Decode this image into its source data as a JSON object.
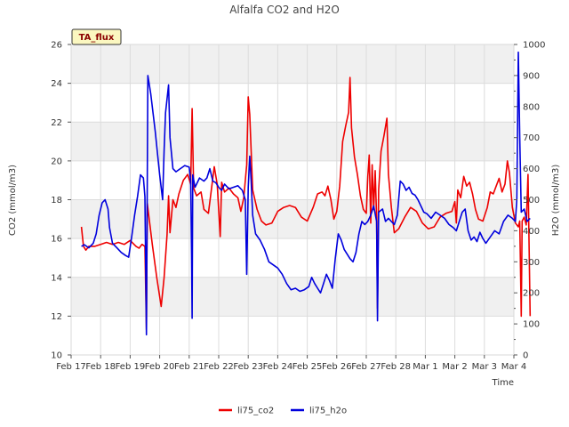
{
  "chart_data": {
    "type": "line",
    "title": "Alfalfa CO2 and H2O",
    "badge": "TA_flux",
    "xlabel": "Time",
    "ylabel_left": "CO2 (mmol/m3)",
    "ylabel_right": "H2O (mmol/m3)",
    "ylim_left": [
      10,
      26
    ],
    "ylim_right": [
      0,
      1000
    ],
    "xlim": [
      0,
      15
    ],
    "left_ticks": [
      10,
      12,
      14,
      16,
      18,
      20,
      22,
      24,
      26
    ],
    "right_ticks": [
      0,
      100,
      200,
      300,
      400,
      500,
      600,
      700,
      800,
      900,
      1000
    ],
    "x_tick_labels": [
      "Feb 17",
      "Feb 18",
      "Feb 19",
      "Feb 20",
      "Feb 21",
      "Feb 22",
      "Feb 23",
      "Feb 24",
      "Feb 25",
      "Feb 26",
      "Feb 27",
      "Feb 28",
      "Mar 1",
      "Mar 2",
      "Mar 3",
      "Mar 4"
    ],
    "grid": true,
    "legend_position": "bottom-center",
    "series": [
      {
        "name": "li75_co2",
        "axis": "left",
        "color": "#ee0000",
        "points": [
          [
            0.35,
            16.6
          ],
          [
            0.42,
            15.6
          ],
          [
            0.5,
            15.4
          ],
          [
            0.6,
            15.6
          ],
          [
            0.8,
            15.6
          ],
          [
            1.0,
            15.7
          ],
          [
            1.2,
            15.8
          ],
          [
            1.4,
            15.7
          ],
          [
            1.6,
            15.8
          ],
          [
            1.8,
            15.7
          ],
          [
            2.0,
            15.9
          ],
          [
            2.2,
            15.6
          ],
          [
            2.3,
            15.5
          ],
          [
            2.4,
            15.7
          ],
          [
            2.5,
            15.6
          ],
          [
            2.55,
            11.3
          ],
          [
            2.58,
            17.8
          ],
          [
            2.75,
            15.7
          ],
          [
            2.9,
            14.0
          ],
          [
            3.05,
            12.5
          ],
          [
            3.15,
            14.0
          ],
          [
            3.25,
            16.2
          ],
          [
            3.3,
            18.2
          ],
          [
            3.35,
            16.3
          ],
          [
            3.45,
            18.0
          ],
          [
            3.55,
            17.6
          ],
          [
            3.65,
            18.3
          ],
          [
            3.8,
            19.0
          ],
          [
            3.95,
            19.3
          ],
          [
            4.05,
            18.8
          ],
          [
            4.1,
            22.7
          ],
          [
            4.15,
            18.6
          ],
          [
            4.25,
            18.2
          ],
          [
            4.4,
            18.4
          ],
          [
            4.5,
            17.5
          ],
          [
            4.65,
            17.3
          ],
          [
            4.75,
            18.5
          ],
          [
            4.85,
            19.7
          ],
          [
            4.95,
            18.8
          ],
          [
            5.05,
            16.1
          ],
          [
            5.1,
            18.9
          ],
          [
            5.2,
            18.4
          ],
          [
            5.35,
            18.6
          ],
          [
            5.5,
            18.3
          ],
          [
            5.65,
            18.1
          ],
          [
            5.75,
            17.4
          ],
          [
            5.85,
            18.1
          ],
          [
            5.95,
            19.8
          ],
          [
            6.0,
            23.3
          ],
          [
            6.05,
            22.4
          ],
          [
            6.15,
            18.5
          ],
          [
            6.3,
            17.5
          ],
          [
            6.45,
            16.9
          ],
          [
            6.6,
            16.7
          ],
          [
            6.8,
            16.8
          ],
          [
            7.0,
            17.4
          ],
          [
            7.2,
            17.6
          ],
          [
            7.4,
            17.7
          ],
          [
            7.6,
            17.6
          ],
          [
            7.8,
            17.1
          ],
          [
            8.0,
            16.9
          ],
          [
            8.2,
            17.6
          ],
          [
            8.35,
            18.3
          ],
          [
            8.5,
            18.4
          ],
          [
            8.6,
            18.2
          ],
          [
            8.7,
            18.7
          ],
          [
            8.8,
            18.0
          ],
          [
            8.9,
            17.0
          ],
          [
            9.0,
            17.4
          ],
          [
            9.1,
            18.7
          ],
          [
            9.2,
            21.0
          ],
          [
            9.3,
            21.8
          ],
          [
            9.4,
            22.5
          ],
          [
            9.45,
            24.3
          ],
          [
            9.5,
            21.7
          ],
          [
            9.6,
            20.2
          ],
          [
            9.7,
            19.3
          ],
          [
            9.8,
            18.2
          ],
          [
            9.9,
            17.5
          ],
          [
            10.0,
            17.3
          ],
          [
            10.05,
            19.2
          ],
          [
            10.1,
            20.3
          ],
          [
            10.15,
            16.8
          ],
          [
            10.2,
            19.8
          ],
          [
            10.25,
            17.5
          ],
          [
            10.3,
            19.5
          ],
          [
            10.35,
            17.1
          ],
          [
            10.38,
            12.4
          ],
          [
            10.42,
            18.5
          ],
          [
            10.5,
            20.5
          ],
          [
            10.6,
            21.3
          ],
          [
            10.7,
            22.2
          ],
          [
            10.75,
            19.3
          ],
          [
            10.85,
            17.6
          ],
          [
            10.95,
            16.3
          ],
          [
            11.1,
            16.5
          ],
          [
            11.3,
            17.1
          ],
          [
            11.5,
            17.6
          ],
          [
            11.7,
            17.4
          ],
          [
            11.9,
            16.8
          ],
          [
            12.1,
            16.5
          ],
          [
            12.3,
            16.6
          ],
          [
            12.5,
            17.1
          ],
          [
            12.7,
            17.3
          ],
          [
            12.9,
            17.4
          ],
          [
            13.0,
            17.9
          ],
          [
            13.05,
            16.8
          ],
          [
            13.1,
            18.5
          ],
          [
            13.2,
            18.1
          ],
          [
            13.3,
            19.2
          ],
          [
            13.4,
            18.7
          ],
          [
            13.5,
            18.9
          ],
          [
            13.6,
            18.3
          ],
          [
            13.7,
            17.5
          ],
          [
            13.8,
            17.0
          ],
          [
            13.95,
            16.9
          ],
          [
            14.1,
            17.6
          ],
          [
            14.2,
            18.4
          ],
          [
            14.3,
            18.3
          ],
          [
            14.4,
            18.7
          ],
          [
            14.5,
            19.1
          ],
          [
            14.6,
            18.4
          ],
          [
            14.7,
            18.8
          ],
          [
            14.78,
            20.0
          ],
          [
            14.85,
            19.4
          ],
          [
            14.95,
            17.6
          ],
          [
            15.05,
            16.8
          ],
          [
            15.15,
            16.6
          ],
          [
            15.2,
            16.9
          ],
          [
            15.25,
            12.0
          ],
          [
            15.28,
            16.9
          ],
          [
            15.35,
            17.1
          ],
          [
            15.42,
            16.7
          ],
          [
            15.48,
            19.3
          ],
          [
            15.55,
            12.0
          ]
        ]
      },
      {
        "name": "li75_h2o",
        "axis": "right",
        "color": "#0000dd",
        "points": [
          [
            0.35,
            350
          ],
          [
            0.45,
            355
          ],
          [
            0.6,
            345
          ],
          [
            0.75,
            360
          ],
          [
            0.85,
            390
          ],
          [
            0.95,
            450
          ],
          [
            1.05,
            490
          ],
          [
            1.15,
            500
          ],
          [
            1.25,
            470
          ],
          [
            1.3,
            410
          ],
          [
            1.4,
            360
          ],
          [
            1.55,
            345
          ],
          [
            1.7,
            330
          ],
          [
            1.85,
            320
          ],
          [
            1.95,
            315
          ],
          [
            2.05,
            380
          ],
          [
            2.15,
            450
          ],
          [
            2.25,
            510
          ],
          [
            2.35,
            580
          ],
          [
            2.45,
            570
          ],
          [
            2.5,
            510
          ],
          [
            2.55,
            65
          ],
          [
            2.6,
            900
          ],
          [
            2.7,
            840
          ],
          [
            2.85,
            720
          ],
          [
            3.0,
            580
          ],
          [
            3.1,
            500
          ],
          [
            3.15,
            660
          ],
          [
            3.2,
            780
          ],
          [
            3.3,
            870
          ],
          [
            3.35,
            700
          ],
          [
            3.45,
            600
          ],
          [
            3.55,
            590
          ],
          [
            3.7,
            600
          ],
          [
            3.85,
            610
          ],
          [
            4.0,
            605
          ],
          [
            4.05,
            560
          ],
          [
            4.08,
            320
          ],
          [
            4.1,
            118
          ],
          [
            4.12,
            580
          ],
          [
            4.2,
            540
          ],
          [
            4.35,
            570
          ],
          [
            4.5,
            560
          ],
          [
            4.6,
            570
          ],
          [
            4.7,
            600
          ],
          [
            4.8,
            560
          ],
          [
            4.9,
            555
          ],
          [
            5.0,
            540
          ],
          [
            5.1,
            530
          ],
          [
            5.2,
            550
          ],
          [
            5.35,
            535
          ],
          [
            5.5,
            540
          ],
          [
            5.65,
            545
          ],
          [
            5.8,
            530
          ],
          [
            5.9,
            500
          ],
          [
            5.95,
            260
          ],
          [
            6.0,
            540
          ],
          [
            6.05,
            640
          ],
          [
            6.1,
            560
          ],
          [
            6.15,
            450
          ],
          [
            6.25,
            390
          ],
          [
            6.4,
            370
          ],
          [
            6.55,
            340
          ],
          [
            6.7,
            300
          ],
          [
            6.85,
            290
          ],
          [
            7.0,
            280
          ],
          [
            7.15,
            260
          ],
          [
            7.3,
            230
          ],
          [
            7.45,
            210
          ],
          [
            7.6,
            215
          ],
          [
            7.75,
            205
          ],
          [
            7.9,
            210
          ],
          [
            8.05,
            220
          ],
          [
            8.15,
            250
          ],
          [
            8.25,
            230
          ],
          [
            8.35,
            215
          ],
          [
            8.45,
            200
          ],
          [
            8.55,
            230
          ],
          [
            8.65,
            260
          ],
          [
            8.75,
            240
          ],
          [
            8.85,
            215
          ],
          [
            8.95,
            310
          ],
          [
            9.05,
            390
          ],
          [
            9.15,
            370
          ],
          [
            9.25,
            340
          ],
          [
            9.35,
            325
          ],
          [
            9.45,
            310
          ],
          [
            9.55,
            300
          ],
          [
            9.65,
            330
          ],
          [
            9.75,
            390
          ],
          [
            9.85,
            430
          ],
          [
            9.95,
            420
          ],
          [
            10.05,
            430
          ],
          [
            10.15,
            450
          ],
          [
            10.25,
            480
          ],
          [
            10.35,
            430
          ],
          [
            10.38,
            110
          ],
          [
            10.42,
            460
          ],
          [
            10.55,
            470
          ],
          [
            10.65,
            430
          ],
          [
            10.75,
            440
          ],
          [
            10.85,
            430
          ],
          [
            10.95,
            420
          ],
          [
            11.05,
            450
          ],
          [
            11.15,
            560
          ],
          [
            11.25,
            550
          ],
          [
            11.35,
            530
          ],
          [
            11.45,
            540
          ],
          [
            11.55,
            520
          ],
          [
            11.65,
            515
          ],
          [
            11.75,
            500
          ],
          [
            11.85,
            480
          ],
          [
            11.95,
            460
          ],
          [
            12.05,
            455
          ],
          [
            12.2,
            440
          ],
          [
            12.35,
            460
          ],
          [
            12.5,
            450
          ],
          [
            12.65,
            440
          ],
          [
            12.8,
            420
          ],
          [
            12.95,
            410
          ],
          [
            13.05,
            400
          ],
          [
            13.15,
            430
          ],
          [
            13.25,
            460
          ],
          [
            13.35,
            470
          ],
          [
            13.45,
            400
          ],
          [
            13.55,
            370
          ],
          [
            13.65,
            380
          ],
          [
            13.75,
            365
          ],
          [
            13.85,
            395
          ],
          [
            13.95,
            375
          ],
          [
            14.05,
            360
          ],
          [
            14.2,
            380
          ],
          [
            14.35,
            400
          ],
          [
            14.5,
            390
          ],
          [
            14.65,
            430
          ],
          [
            14.8,
            450
          ],
          [
            14.95,
            440
          ],
          [
            15.05,
            430
          ],
          [
            15.1,
            500
          ],
          [
            15.15,
            975
          ],
          [
            15.2,
            700
          ],
          [
            15.25,
            460
          ],
          [
            15.35,
            470
          ],
          [
            15.45,
            430
          ],
          [
            15.55,
            440
          ]
        ]
      }
    ]
  }
}
